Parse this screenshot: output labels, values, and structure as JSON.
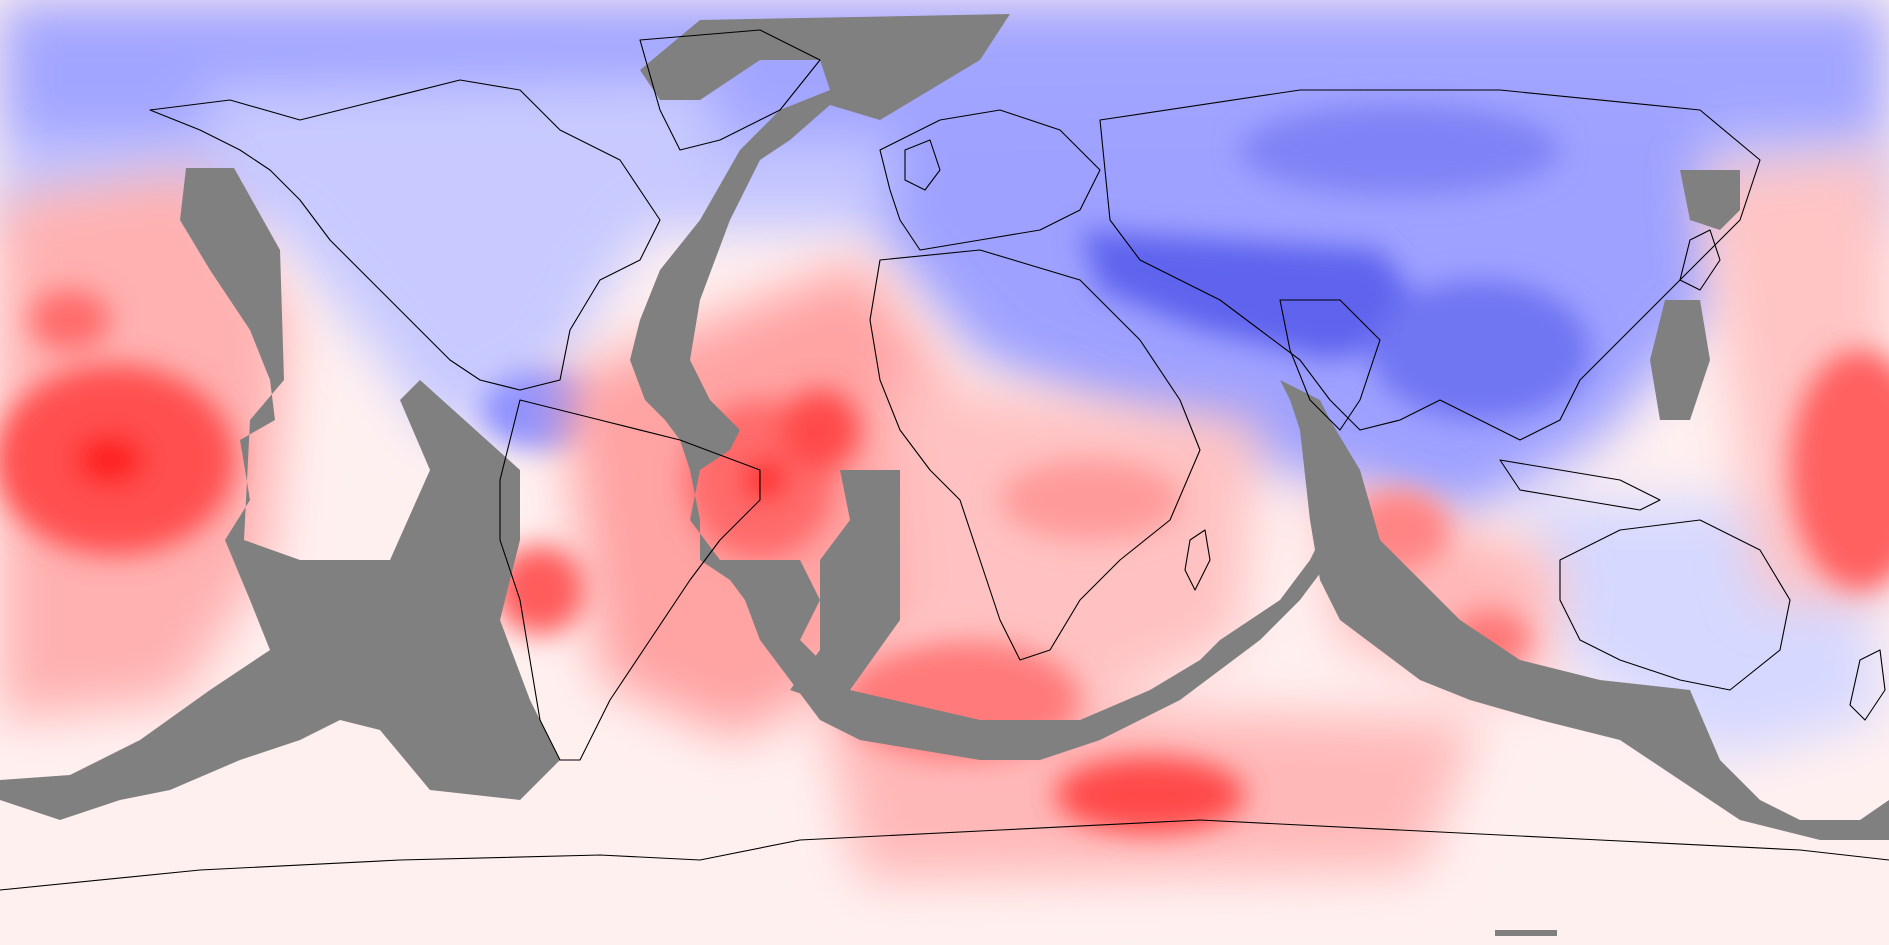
{
  "map": {
    "projection": "equirectangular",
    "colors": {
      "ocean_gap": "#808080",
      "coast": "#000000",
      "blue_light": "#eef0ff",
      "blue_mid": "#c6c8ff",
      "blue_base": "#9fa2ff",
      "blue_deep": "#6a6ef0",
      "blue_max": "#3d42e6",
      "red_light": "#ffe3e3",
      "red_mid": "#ffb3b3",
      "red_strong": "#ff7f7f",
      "red_deep": "#ff4a4a",
      "red_max": "#ff1d1d",
      "neutral": "#fff6f6"
    },
    "legend_visible": false
  }
}
